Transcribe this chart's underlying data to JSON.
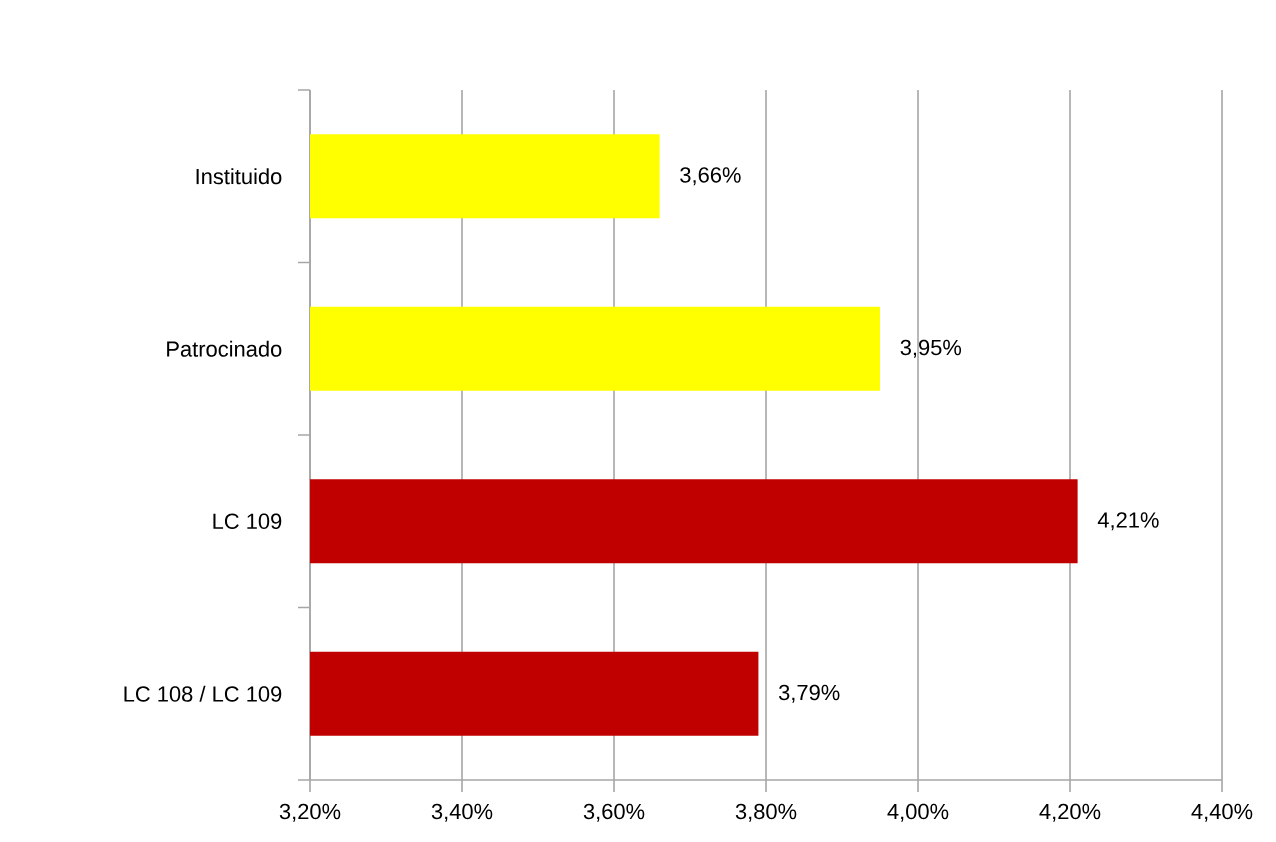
{
  "chart_data": {
    "type": "bar",
    "orientation": "horizontal",
    "categories": [
      "Instituido",
      "Patrocinado",
      "LC 109",
      "LC 108 / LC 109"
    ],
    "values": [
      3.66,
      3.95,
      4.21,
      3.79
    ],
    "colors": [
      "#ffff00",
      "#ffff00",
      "#c00000",
      "#c00000"
    ],
    "value_labels": [
      "3,66%",
      "3,95%",
      "4,21%",
      "3,79%"
    ],
    "xlim": [
      3.2,
      4.4
    ],
    "xticks": [
      {
        "value": 3.2,
        "label": "3,20%"
      },
      {
        "value": 3.4,
        "label": "3,40%"
      },
      {
        "value": 3.6,
        "label": "3,60%"
      },
      {
        "value": 3.8,
        "label": "3,80%"
      },
      {
        "value": 4.0,
        "label": "4,00%"
      },
      {
        "value": 4.2,
        "label": "4,20%"
      },
      {
        "value": 4.4,
        "label": "4,40%"
      }
    ],
    "grid": "x"
  }
}
